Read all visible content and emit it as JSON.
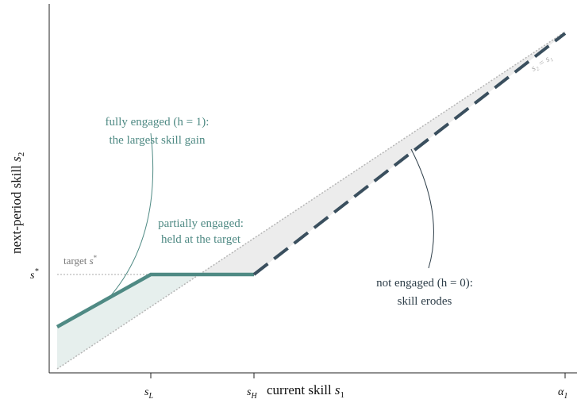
{
  "axes": {
    "y_label": {
      "text": "next-period skill ",
      "var": "s",
      "sub": "2"
    },
    "x_label": {
      "text": "current skill ",
      "var": "s",
      "sub": "1"
    },
    "x_ticks": [
      {
        "var": "s",
        "sub": "L"
      },
      {
        "var": "s",
        "sub": "H"
      },
      {
        "var": "α",
        "sub": "1"
      }
    ],
    "y_tick": {
      "var": "s",
      "sup": "*"
    }
  },
  "target_label": {
    "text": "target ",
    "var": "s",
    "sup": "*"
  },
  "diagonal_label": "s₂ = s₁",
  "annotations": {
    "fully": [
      "fully engaged (h = 1):",
      "the largest skill gain"
    ],
    "partially": [
      "partially engaged:",
      "held at the target"
    ],
    "not": [
      "not engaged (h = 0):",
      "skill erodes"
    ]
  }
}
